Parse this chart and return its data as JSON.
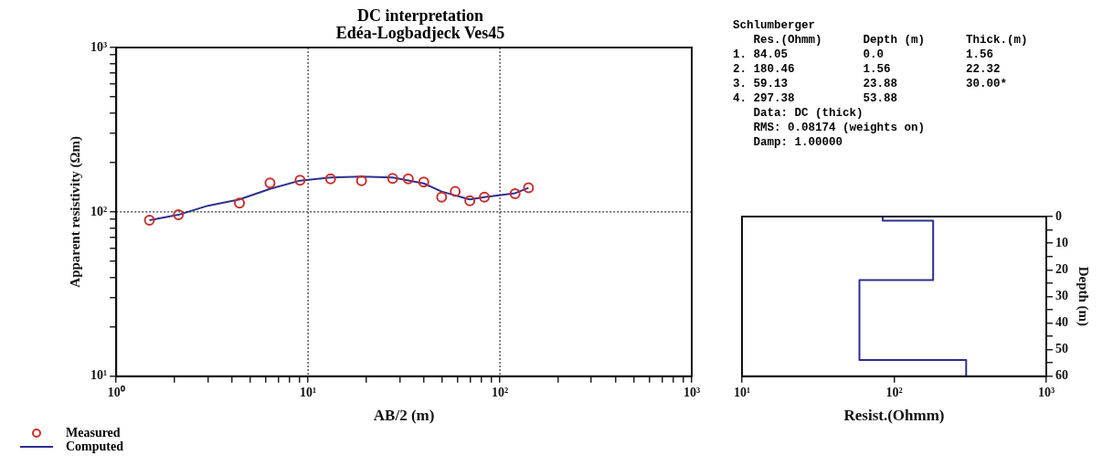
{
  "chart_data": [
    {
      "type": "line",
      "title": "DC interpretation",
      "subtitle": "Edéa-Logbadjeck Ves45",
      "xlabel": "AB/2 (m)",
      "ylabel": "Apparent resistivity (Ωm)",
      "log": "xy",
      "grid": true,
      "legend": "bottom left",
      "xlim": [
        1,
        1000
      ],
      "ylim": [
        10,
        1000
      ],
      "xticks": [
        {
          "value": 1,
          "label": "10⁰"
        },
        {
          "value": 2,
          "label": null
        },
        {
          "value": 3,
          "label": null
        },
        {
          "value": 4,
          "label": null
        },
        {
          "value": 5,
          "label": null
        },
        {
          "value": 6,
          "label": null
        },
        {
          "value": 7,
          "label": null
        },
        {
          "value": 8,
          "label": null
        },
        {
          "value": 9,
          "label": null
        },
        {
          "value": 10,
          "label": "10¹"
        },
        {
          "value": 20,
          "label": null
        },
        {
          "value": 30,
          "label": null
        },
        {
          "value": 40,
          "label": null
        },
        {
          "value": 50,
          "label": null
        },
        {
          "value": 60,
          "label": null
        },
        {
          "value": 70,
          "label": null
        },
        {
          "value": 80,
          "label": null
        },
        {
          "value": 90,
          "label": null
        },
        {
          "value": 100,
          "label": "10²"
        },
        {
          "value": 200,
          "label": null
        },
        {
          "value": 300,
          "label": null
        },
        {
          "value": 400,
          "label": null
        },
        {
          "value": 500,
          "label": null
        },
        {
          "value": 600,
          "label": null
        },
        {
          "value": 700,
          "label": null
        },
        {
          "value": 800,
          "label": null
        },
        {
          "value": 900,
          "label": null
        },
        {
          "value": 1000,
          "label": "10³"
        }
      ],
      "yticks": [
        {
          "value": 10,
          "label": "10¹"
        },
        {
          "value": 20,
          "label": null
        },
        {
          "value": 30,
          "label": null
        },
        {
          "value": 40,
          "label": null
        },
        {
          "value": 50,
          "label": null
        },
        {
          "value": 60,
          "label": null
        },
        {
          "value": 70,
          "label": null
        },
        {
          "value": 80,
          "label": null
        },
        {
          "value": 90,
          "label": null
        },
        {
          "value": 100,
          "label": "10²"
        },
        {
          "value": 200,
          "label": null
        },
        {
          "value": 300,
          "label": null
        },
        {
          "value": 400,
          "label": null
        },
        {
          "value": 500,
          "label": null
        },
        {
          "value": 600,
          "label": null
        },
        {
          "value": 700,
          "label": null
        },
        {
          "value": 800,
          "label": null
        },
        {
          "value": 900,
          "label": null
        },
        {
          "value": 1000,
          "label": "10³"
        }
      ],
      "series": [
        {
          "name": "Measured",
          "type": "scatter",
          "marker": "circle",
          "color": "#c8302c",
          "x": [
            1.49,
            2.11,
            4.39,
            6.33,
            9.08,
            13.1,
            19.0,
            27.6,
            33.3,
            40.1,
            49.7,
            58.5,
            69.7,
            83,
            120,
            141
          ],
          "values": [
            89,
            96,
            113,
            150,
            156,
            159,
            155,
            160,
            159,
            152,
            123,
            133,
            117,
            123,
            129,
            140
          ]
        },
        {
          "name": "Computed",
          "type": "line",
          "marker": "none",
          "color": "#2e2e8f",
          "x": [
            1.49,
            2.11,
            3,
            4.39,
            6.33,
            9.08,
            13.1,
            19.0,
            27.6,
            40.1,
            49.7,
            58.5,
            69.7,
            83,
            120,
            141
          ],
          "values": [
            89,
            96,
            109,
            119,
            138,
            155,
            162,
            164,
            162,
            149,
            133,
            126,
            119,
            123,
            130,
            140
          ]
        }
      ]
    },
    {
      "type": "line",
      "xlabel": "Resist.(Ohmm)",
      "ylabel": "Depth (m)",
      "log": "x",
      "xlim": [
        10,
        1000
      ],
      "ylim": [
        60,
        0
      ],
      "xticks": [
        {
          "value": 10,
          "label": "10¹"
        },
        {
          "value": 100,
          "label": "10²"
        },
        {
          "value": 1000,
          "label": "10³"
        }
      ],
      "yticks": [
        0,
        {
          "value": 5,
          "label": null
        },
        10,
        {
          "value": 15,
          "label": null
        },
        20,
        {
          "value": 25,
          "label": null
        },
        30,
        {
          "value": 35,
          "label": null
        },
        40,
        {
          "value": 45,
          "label": null
        },
        50,
        {
          "value": 55,
          "label": null
        },
        60
      ],
      "annotations": [
        "Schlumberger",
        "   Res.(Ohmm)      Depth (m)      Thick.(m)",
        "1. 84.05           0.0            1.56",
        "2. 180.46          1.56           22.32",
        "3. 59.13           23.88          30.00*",
        "4. 297.38          53.88",
        "   Data: DC (thick)",
        "   RMS: 0.08174 (weights on)",
        "   Damp: 1.00000"
      ],
      "series": [
        {
          "type": "line",
          "color": "#2e2e8f",
          "x": [
            84.05,
            84.05,
            180.46,
            180.46,
            59.13,
            59.13,
            297.38,
            297.38
          ],
          "values": [
            0,
            1.56,
            1.56,
            23.88,
            23.88,
            53.88,
            53.88,
            60
          ]
        }
      ]
    }
  ]
}
